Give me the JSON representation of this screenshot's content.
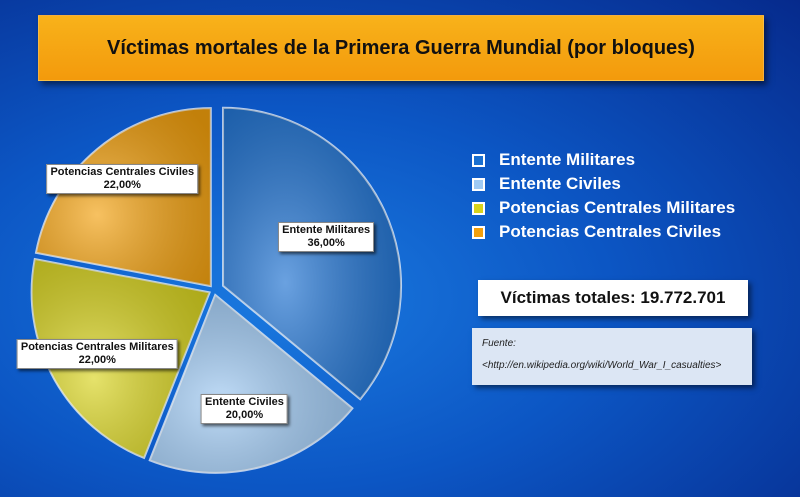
{
  "chart_data": {
    "type": "pie",
    "title": "Víctimas mortales de la Primera Guerra Mundial (por bloques)",
    "slices": [
      {
        "label": "Entente Militares",
        "value": 36,
        "value_label": "36,00%",
        "color": "#1a6fd0"
      },
      {
        "label": "Entente Civiles",
        "value": 20,
        "value_label": "20,00%",
        "color": "#9fcaf4"
      },
      {
        "label": "Potencias Centrales Militares",
        "value": 22,
        "value_label": "22,00%",
        "color": "#d8d31c"
      },
      {
        "label": "Potencias Centrales Civiles",
        "value": 22,
        "value_label": "22,00%",
        "color": "#f3a00c"
      }
    ],
    "legend_position": "right"
  },
  "total": "Víctimas totales: 19.772.701",
  "source": {
    "label": "Fuente:",
    "url": "<http://en.wikipedia.org/wiki/World_War_I_casualties>"
  }
}
